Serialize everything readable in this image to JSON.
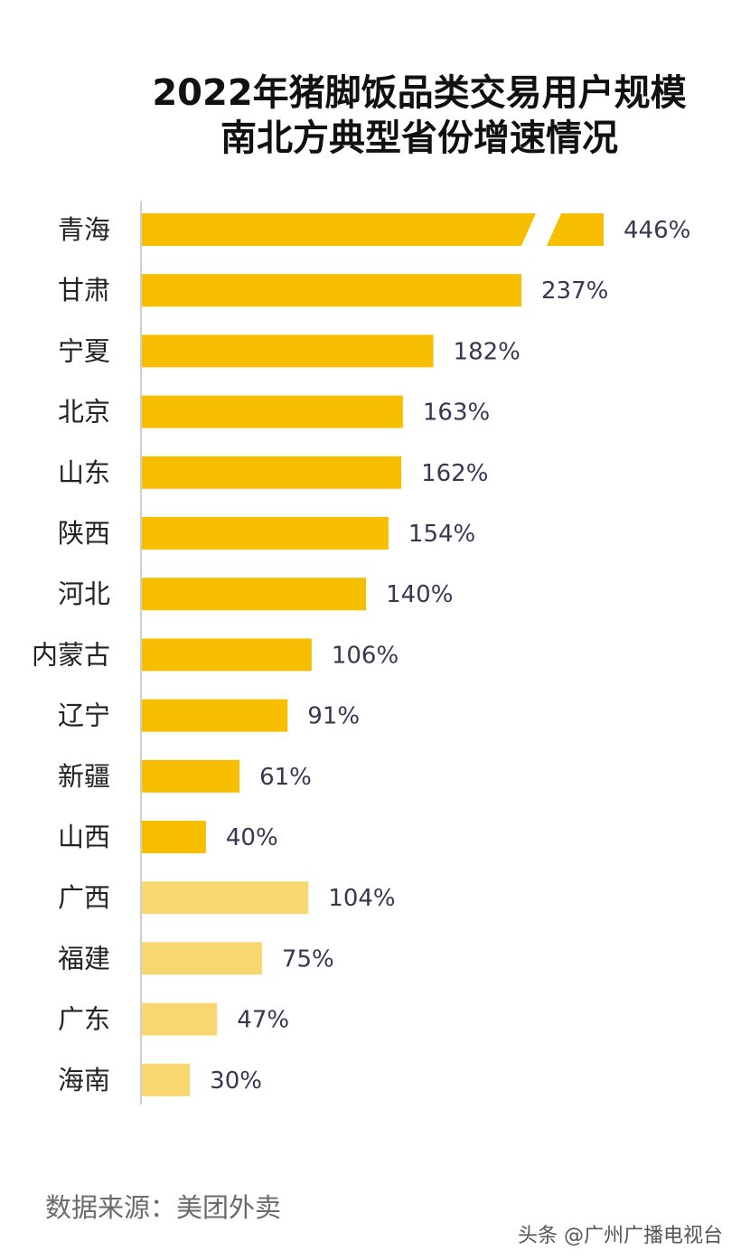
{
  "chart_data": {
    "type": "bar",
    "orientation": "horizontal",
    "title_lines": [
      "2022年猪脚饭品类交易用户规模",
      "南北方典型省份增速情况"
    ],
    "categories": [
      "青海",
      "甘肃",
      "宁夏",
      "北京",
      "山东",
      "陕西",
      "河北",
      "内蒙古",
      "辽宁",
      "新疆",
      "山西",
      "广西",
      "福建",
      "广东",
      "海南"
    ],
    "values": [
      446,
      237,
      182,
      163,
      162,
      154,
      140,
      106,
      91,
      61,
      40,
      104,
      75,
      47,
      30
    ],
    "value_labels": [
      "446%",
      "237%",
      "182%",
      "163%",
      "162%",
      "154%",
      "140%",
      "106%",
      "91%",
      "61%",
      "40%",
      "104%",
      "75%",
      "47%",
      "30%"
    ],
    "groups": [
      "north",
      "north",
      "north",
      "north",
      "north",
      "north",
      "north",
      "north",
      "north",
      "north",
      "north",
      "south",
      "south",
      "south",
      "south"
    ],
    "colors": {
      "north": "#F7BE00",
      "south": "#F9D770"
    },
    "broken_axis_category": "青海"
  },
  "source": "数据来源：美团外卖",
  "watermark": "头条 @广州广播电视台"
}
